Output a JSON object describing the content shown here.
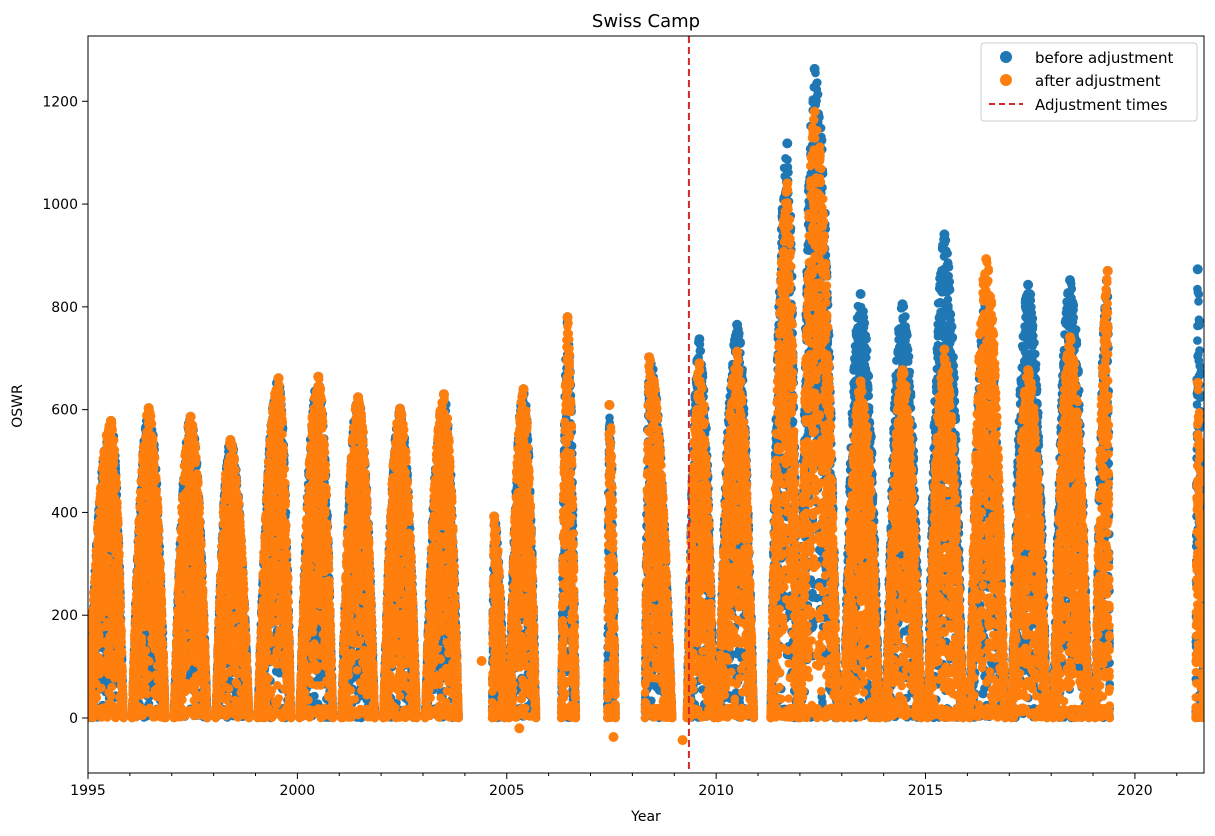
{
  "chart_data": {
    "type": "scatter",
    "title": "Swiss Camp",
    "xlabel": "Year",
    "ylabel": "OSWR",
    "xlim": [
      1995.0,
      2021.65
    ],
    "ylim": [
      -107,
      1327
    ],
    "xticks": [
      1995,
      2000,
      2005,
      2010,
      2015,
      2020
    ],
    "xtick_labels": [
      "1995",
      "2000",
      "2005",
      "2010",
      "2015",
      "2020"
    ],
    "yticks": [
      0,
      200,
      400,
      600,
      800,
      1000,
      1200
    ],
    "ytick_labels": [
      "0",
      "200",
      "400",
      "600",
      "800",
      "1000",
      "1200"
    ],
    "grid": false,
    "legend_position": "top-right",
    "adjustment_time": 2009.35,
    "series": [
      {
        "name": "before adjustment",
        "color": "#1f77b4",
        "marker": "circle",
        "seasonal_peaks": [
          {
            "year": 1995.55,
            "start": 1995.0,
            "end": 1995.85,
            "peak": 578
          },
          {
            "year": 1996.45,
            "start": 1996.05,
            "end": 1996.85,
            "peak": 603
          },
          {
            "year": 1997.45,
            "start": 1997.05,
            "end": 1997.85,
            "peak": 586
          },
          {
            "year": 1998.4,
            "start": 1998.05,
            "end": 1998.85,
            "peak": 541
          },
          {
            "year": 1999.55,
            "start": 1999.05,
            "end": 1999.85,
            "peak": 661
          },
          {
            "year": 2000.5,
            "start": 2000.05,
            "end": 2000.85,
            "peak": 664
          },
          {
            "year": 2001.45,
            "start": 2001.05,
            "end": 2001.85,
            "peak": 624
          },
          {
            "year": 2002.45,
            "start": 2002.05,
            "end": 2002.85,
            "peak": 602
          },
          {
            "year": 2003.5,
            "start": 2003.05,
            "end": 2003.85,
            "peak": 630
          },
          {
            "year": 2004.7,
            "start": 2004.65,
            "end": 2004.95,
            "peak": 392
          },
          {
            "year": 2005.4,
            "start": 2005.05,
            "end": 2005.7,
            "peak": 640
          },
          {
            "year": 2006.45,
            "start": 2006.3,
            "end": 2006.65,
            "peak": 780
          },
          {
            "year": 2007.45,
            "start": 2007.4,
            "end": 2007.6,
            "peak": 609
          },
          {
            "year": 2008.4,
            "start": 2008.3,
            "end": 2008.95,
            "peak": 702
          },
          {
            "year": 2009.6,
            "start": 2009.3,
            "end": 2009.95,
            "peak": 737
          },
          {
            "year": 2010.5,
            "start": 2010.05,
            "end": 2010.9,
            "peak": 765
          },
          {
            "year": 2011.7,
            "start": 2011.3,
            "end": 2011.95,
            "peak": 1118
          },
          {
            "year": 2012.35,
            "start": 2012.0,
            "end": 2012.9,
            "peak": 1263
          },
          {
            "year": 2013.45,
            "start": 2013.05,
            "end": 2013.9,
            "peak": 825
          },
          {
            "year": 2014.45,
            "start": 2014.05,
            "end": 2014.9,
            "peak": 805
          },
          {
            "year": 2015.45,
            "start": 2015.05,
            "end": 2015.9,
            "peak": 941
          },
          {
            "year": 2016.45,
            "start": 2016.05,
            "end": 2016.9,
            "peak": 825
          },
          {
            "year": 2017.45,
            "start": 2017.05,
            "end": 2017.9,
            "peak": 843
          },
          {
            "year": 2018.45,
            "start": 2018.05,
            "end": 2018.9,
            "peak": 852
          },
          {
            "year": 2019.35,
            "start": 2019.05,
            "end": 2019.4,
            "peak": 870
          },
          {
            "year": 2021.5,
            "start": 2021.45,
            "end": 2021.65,
            "peak": 873
          }
        ]
      },
      {
        "name": "after adjustment",
        "color": "#ff7f0e",
        "marker": "circle",
        "seasonal_peaks": [
          {
            "year": 1995.55,
            "start": 1995.0,
            "end": 1995.85,
            "peak": 578
          },
          {
            "year": 1996.45,
            "start": 1996.05,
            "end": 1996.85,
            "peak": 603
          },
          {
            "year": 1997.45,
            "start": 1997.05,
            "end": 1997.85,
            "peak": 586
          },
          {
            "year": 1998.4,
            "start": 1998.05,
            "end": 1998.85,
            "peak": 541
          },
          {
            "year": 1999.55,
            "start": 1999.05,
            "end": 1999.85,
            "peak": 661
          },
          {
            "year": 2000.5,
            "start": 2000.05,
            "end": 2000.85,
            "peak": 664
          },
          {
            "year": 2001.45,
            "start": 2001.05,
            "end": 2001.85,
            "peak": 624
          },
          {
            "year": 2002.45,
            "start": 2002.05,
            "end": 2002.85,
            "peak": 602
          },
          {
            "year": 2003.5,
            "start": 2003.05,
            "end": 2003.85,
            "peak": 630
          },
          {
            "year": 2004.7,
            "start": 2004.65,
            "end": 2004.95,
            "peak": 392
          },
          {
            "year": 2005.4,
            "start": 2005.05,
            "end": 2005.7,
            "peak": 640
          },
          {
            "year": 2006.45,
            "start": 2006.3,
            "end": 2006.65,
            "peak": 780
          },
          {
            "year": 2007.45,
            "start": 2007.4,
            "end": 2007.6,
            "peak": 609
          },
          {
            "year": 2008.4,
            "start": 2008.3,
            "end": 2008.95,
            "peak": 702
          },
          {
            "year": 2009.6,
            "start": 2009.3,
            "end": 2009.95,
            "peak": 690
          },
          {
            "year": 2010.5,
            "start": 2010.05,
            "end": 2010.9,
            "peak": 713
          },
          {
            "year": 2011.7,
            "start": 2011.3,
            "end": 2011.95,
            "peak": 1040
          },
          {
            "year": 2012.35,
            "start": 2012.0,
            "end": 2012.9,
            "peak": 1180
          },
          {
            "year": 2013.45,
            "start": 2013.05,
            "end": 2013.9,
            "peak": 655
          },
          {
            "year": 2014.45,
            "start": 2014.05,
            "end": 2014.9,
            "peak": 677
          },
          {
            "year": 2015.45,
            "start": 2015.05,
            "end": 2015.9,
            "peak": 717
          },
          {
            "year": 2016.45,
            "start": 2016.05,
            "end": 2016.9,
            "peak": 893
          },
          {
            "year": 2017.45,
            "start": 2017.05,
            "end": 2017.9,
            "peak": 677
          },
          {
            "year": 2018.45,
            "start": 2018.05,
            "end": 2018.9,
            "peak": 741
          },
          {
            "year": 2019.35,
            "start": 2019.05,
            "end": 2019.4,
            "peak": 870
          },
          {
            "year": 2021.5,
            "start": 2021.45,
            "end": 2021.65,
            "peak": 652
          }
        ],
        "outliers": [
          {
            "x": 2004.4,
            "y": 111
          },
          {
            "x": 2005.3,
            "y": -20
          },
          {
            "x": 2007.55,
            "y": -37
          },
          {
            "x": 2009.2,
            "y": -43
          }
        ]
      }
    ],
    "reference_line": {
      "name": "Adjustment times",
      "color": "#d62728",
      "style": "dashed",
      "x": 2009.35
    }
  }
}
